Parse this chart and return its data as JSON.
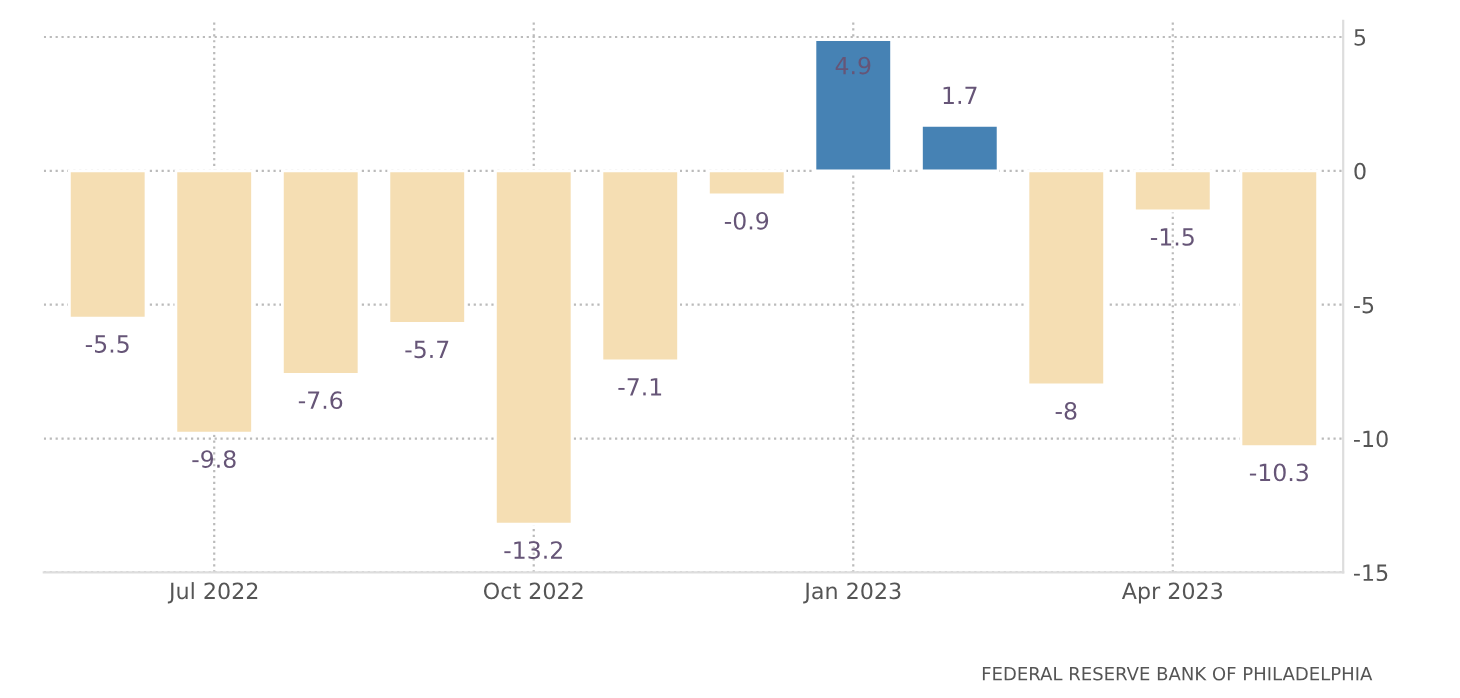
{
  "chart_data": {
    "type": "bar",
    "categories": [
      null,
      "Jul 2022",
      null,
      null,
      "Oct 2022",
      null,
      null,
      "Jan 2023",
      null,
      null,
      "Apr 2023",
      null
    ],
    "values": [
      -5.5,
      -9.8,
      -7.6,
      -5.7,
      -13.2,
      -7.1,
      -0.9,
      4.9,
      1.7,
      -8,
      -1.5,
      -10.3
    ],
    "colors": [
      "#f5deb3",
      "#f5deb3",
      "#f5deb3",
      "#f5deb3",
      "#f5deb3",
      "#f5deb3",
      "#f5deb3",
      "#4682b4",
      "#4682b4",
      "#f5deb3",
      "#f5deb3",
      "#f5deb3"
    ],
    "ylim": [
      -15,
      5.6
    ],
    "yticks": [
      -15,
      -10,
      -5,
      0,
      5
    ],
    "grid": true,
    "data_labels": true,
    "annotations": [
      "FEDERAL RESERVE BANK OF PHILADELPHIA"
    ]
  }
}
